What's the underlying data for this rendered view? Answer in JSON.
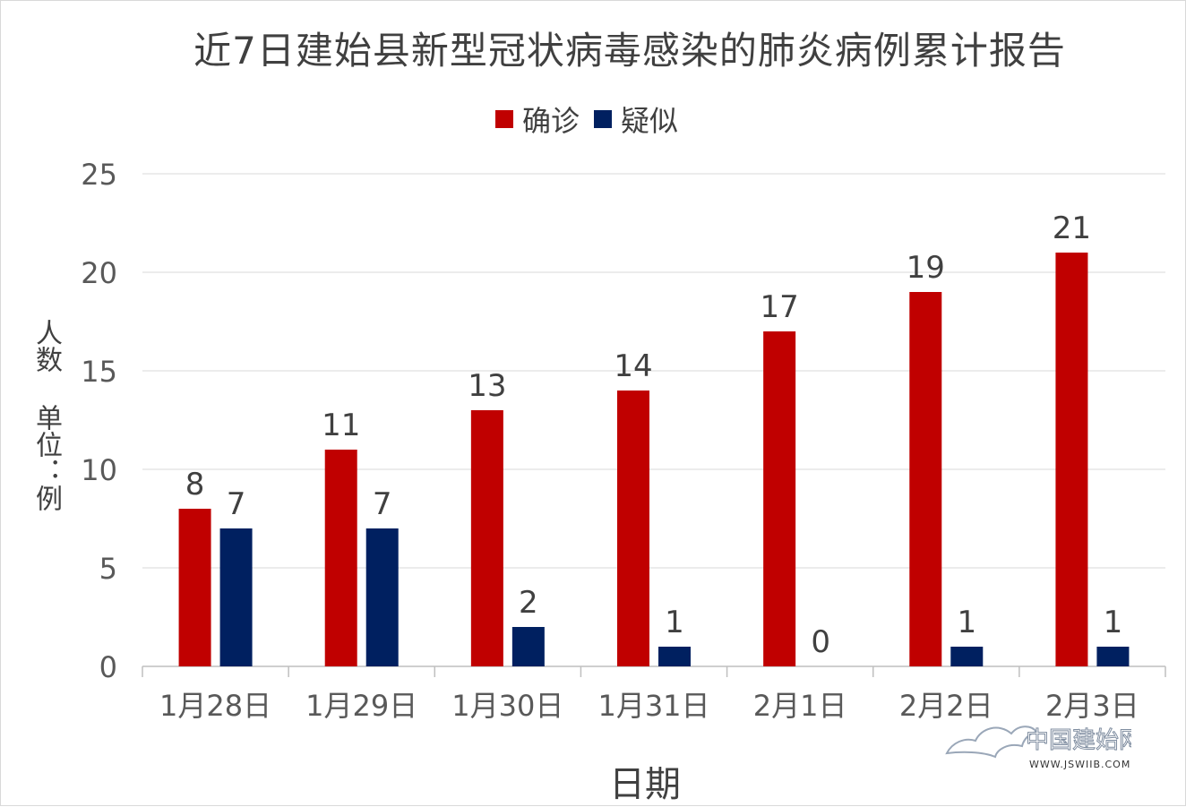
{
  "chart_data": {
    "type": "bar",
    "title": "近7日建始县新型冠状病毒感染的肺炎病例累计报告",
    "xlabel": "日期",
    "ylabel": "人数 单位：例",
    "categories": [
      "1月28日",
      "1月29日",
      "1月30日",
      "1月31日",
      "2月1日",
      "2月2日",
      "2月3日"
    ],
    "series": [
      {
        "name": "确诊",
        "color": "#c00000",
        "values": [
          8,
          11,
          13,
          14,
          17,
          19,
          21
        ]
      },
      {
        "name": "疑似",
        "color": "#002060",
        "values": [
          7,
          7,
          2,
          1,
          0,
          1,
          1
        ]
      }
    ],
    "ylim": [
      0,
      25
    ],
    "yticks": [
      0,
      5,
      10,
      15,
      20,
      25
    ],
    "grid": true,
    "legend_position": "top",
    "data_labels": true
  },
  "watermark": {
    "text": "中国建始网",
    "url": "WWW.JSWIIB.COM"
  }
}
